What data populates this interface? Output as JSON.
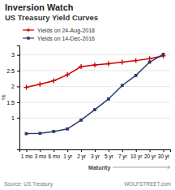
{
  "chart_data": {
    "type": "line",
    "title": "Inversion Watch",
    "subtitle": "US Treasury Yield Curves",
    "xlabel": "Maturity",
    "ylabel": "%",
    "categories": [
      "1 mo",
      "3 mo",
      "6 mo",
      "1 yr",
      "2 yr",
      "3 yr",
      "5 yr",
      "7 yr",
      "10 yr",
      "20 yr",
      "30 yr"
    ],
    "series": [
      {
        "name": "Yields on 24-Aug-2018",
        "color": "#cc0000",
        "marker": "plus",
        "values": [
          1.97,
          2.07,
          2.18,
          2.37,
          2.63,
          2.68,
          2.72,
          2.77,
          2.82,
          2.88,
          2.97
        ]
      },
      {
        "name": "Yields on 14-Dec-2016",
        "color": "#2b3a6b",
        "marker": "square",
        "values": [
          0.5,
          0.51,
          0.57,
          0.65,
          0.93,
          1.26,
          1.6,
          2.03,
          2.35,
          2.77,
          3.02
        ]
      }
    ],
    "ylim": [
      0.0,
      3.3
    ],
    "yticks": [
      1,
      1.5,
      2,
      2.5,
      3
    ],
    "grid": true,
    "legend": "top",
    "annotations": [
      "Source: US Treasury",
      "WOLFSTREET.com"
    ]
  }
}
